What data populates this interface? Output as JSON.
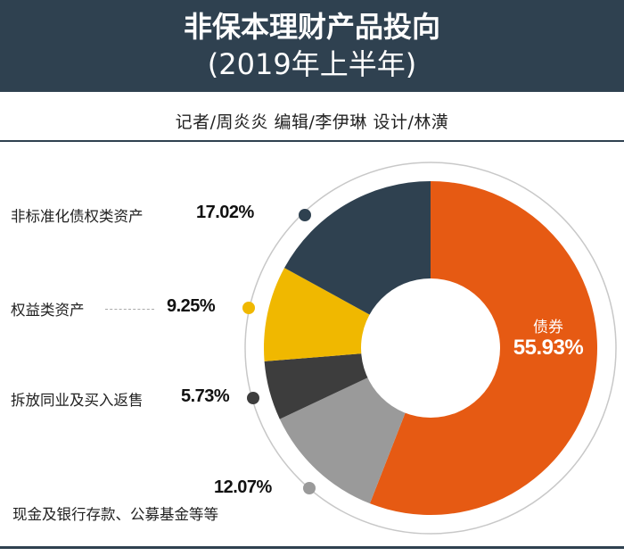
{
  "header": {
    "title_line1": "非保本理财产品投向",
    "title_line2": "(2019年上半年)",
    "background": "#2f4150"
  },
  "credits": "记者/周炎炎   编辑/李伊琳   设计/林潢",
  "chart_data": {
    "type": "pie",
    "subtype": "donut",
    "title": "非保本理财产品投向 (2019年上半年)",
    "categories": [
      "债券",
      "现金及银行存款、公募基金等等",
      "拆放同业及买入返售",
      "权益类资产",
      "非标准化债权类资产"
    ],
    "values": [
      55.93,
      12.07,
      5.73,
      9.25,
      17.02
    ],
    "unit": "%",
    "colors": [
      "#e65a13",
      "#9a9a9a",
      "#3d3d3d",
      "#f0b800",
      "#2f4150"
    ],
    "start_angle": "12 o'clock, clockwise"
  },
  "labels": {
    "bonds": {
      "name": "债券",
      "pct": "55.93%"
    },
    "nonstandard": {
      "name": "非标准化债权类资产",
      "pct": "17.02%"
    },
    "equity": {
      "name": "权益类资产",
      "pct": "9.25%"
    },
    "interbank": {
      "name": "拆放同业及买入返售",
      "pct": "5.73%"
    },
    "cash": {
      "name": "现金及银行存款、公募基金等等",
      "pct": "12.07%"
    }
  }
}
